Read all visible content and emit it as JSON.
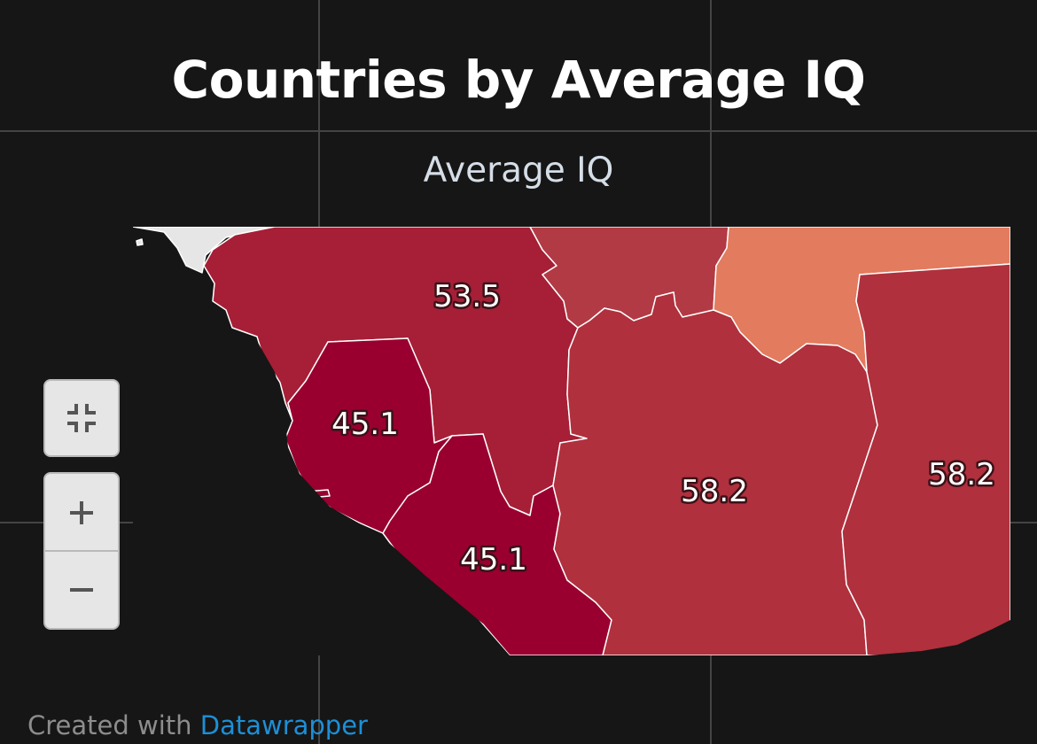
{
  "title": "Countries by Average IQ",
  "legend_title": "Average IQ",
  "footer": {
    "prefix": "Created with ",
    "link_text": "Datawrapper"
  },
  "controls": {
    "fit_icon": "fit-to-screen-icon",
    "zoom_in_icon": "plus-icon",
    "zoom_out_icon": "minus-icon"
  },
  "regions": [
    {
      "label": "53.5",
      "value": 53.5,
      "color": "#a61f36"
    },
    {
      "label": "45.1",
      "value": 45.1,
      "color": "#990030"
    },
    {
      "label": "45.1",
      "value": 45.1,
      "color": "#990030"
    },
    {
      "label": "58.2",
      "value": 58.2,
      "color": "#b0303d"
    },
    {
      "label": "58.2",
      "value": 58.2,
      "color": "#b0303d"
    },
    {
      "label": "",
      "color": "#b23a44"
    },
    {
      "label": "",
      "color": "#e37b5e"
    },
    {
      "label": "",
      "color": "#e6e6e6"
    }
  ],
  "colors": {
    "background": "#161616",
    "gridline": "#444444",
    "border": "#ffffff",
    "footer_link": "#1d8fd6"
  }
}
